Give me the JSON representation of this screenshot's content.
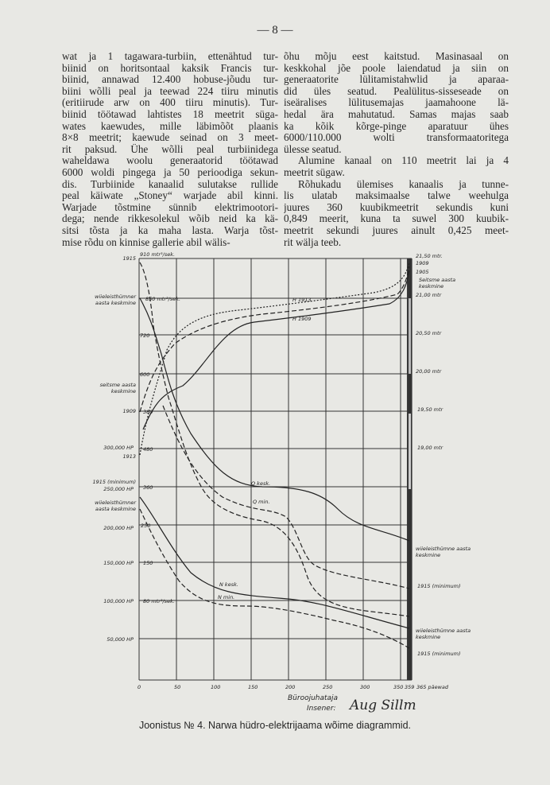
{
  "page_number": "— 8 —",
  "left_column": [
    "wat ja 1 tagawara-turbiin, ettenähtud tur-",
    "biinid on horitsontaal kaksik Francis tur-",
    "biinid, annawad 12.400 hobuse-jõudu tur-",
    "biini wõlli peal ja teewad 224 tiiru minutis",
    "(eritiirude arw on 400 tiiru minutis). Tur-",
    "biinid töötawad lahtistes 18 meetrit süga-",
    "wates kaewudes, mille läbimõõt plaanis",
    "8×8 meetrit; kaewude seinad on 3 meet-",
    "rit paksud. Ühe wõlli peal turbiinidega",
    "waheldawa woolu generaatorid töötawad",
    "6000 woldi pingega ja 50 perioodiga sekun-",
    "dis. Turbiinide kanaalid sulutakse rullide",
    "peal käiwate „Stoney“ warjade abil kinni.",
    "Warjade tõstmine sünnib elektrimootori-",
    "dega; nende rikkesolekul wõib neid ka kä-",
    "sitsi tõsta ja ka maha lasta. Warja tõst-",
    "mise rõdu on kinnise gallerie abil wälis-"
  ],
  "right_column": [
    "õhu mõju eest kaitstud. Masinasaal on",
    "keskkohal jõe poole laiendatud ja siin on",
    "generaatorite lülitamistahwlid ja aparaa-",
    "did üles seatud. Pealülitus-sisseseade on",
    "iseäralises lülitusemajas jaamahoone lä-",
    "hedal ära mahutatud. Samas majas saab",
    "ka kõik kõrge-pinge aparatuur ühes",
    "6000/110.000 wolti transformaatoritega",
    "ülesse seatud.",
    "Alumine kanaal on 110 meetrit lai ja 4",
    "meetrit sügaw.",
    "Rõhukadu ülemises kanaalis ja tunne-",
    "lis ulatab maksimaalse talwe weehulga",
    "juures 360 kuubikmeetrit sekundis kuni",
    "0,849 meerit, kuna ta suwel 300 kuubik-",
    "meetrit sekundi juures ainult 0,425 meet-",
    "rit wälja teeb."
  ],
  "diagram": {
    "x_ticks": [
      "0",
      "50",
      "100",
      "150",
      "200",
      "250",
      "300",
      "350",
      "359",
      "365 päewad"
    ],
    "left_labels": {
      "y1915": "1915",
      "wiiel_kesk": [
        "wiieleisthümner",
        "aasta keskmine"
      ],
      "seitsme_kesk": [
        "seitsme aasta",
        "keskmine"
      ],
      "y1909": "1909",
      "hp300": "300,000 HP",
      "y1913": "1913",
      "min1915": "1915 (minimum)",
      "hp250": "250,000 HP",
      "wiiel_kesk2": [
        "wiieleisthümner",
        "aasta keskmine"
      ],
      "hp200": "200,000 HP",
      "hp150": "150,000 HP",
      "hp100": "100,000 HP",
      "hp50": "50,000 HP"
    },
    "inner_labels": {
      "q910": "910 mtr³/sek.",
      "q850": "850 mtr³/sek.",
      "q720": "720",
      "q600": "600",
      "q380": "380",
      "q480": "480",
      "q360": "360",
      "q250": "250",
      "q150": "150",
      "q80": "80 mtr³/sek.",
      "h1913": "H 1913",
      "h1909": "H 1909",
      "q_kesk": "Q kesk.",
      "q_min": "Q min.",
      "n_kesk": "N kesk.",
      "n_min": "N min."
    },
    "right_labels": {
      "m2150": "21,50 mtr.",
      "y1909": "1909",
      "y1905": "1905",
      "seitsme": [
        "Seitsme aasta",
        "keskmine"
      ],
      "m2100": "21,00 mtr",
      "m2050": "20,50 mtr",
      "m2000": "20,00 mtr",
      "m1950": "19,50 mtr",
      "m1900": "19,00 mtr",
      "wiiel1": [
        "wiieleisthümne aasta",
        "keskmine"
      ],
      "min1915": "1915 (minimum)",
      "wiiel2": [
        "wiieleisthümne aasta",
        "keskmine"
      ],
      "min1915b": "1915 (minimum)"
    }
  },
  "signature": {
    "title1": "Büroojuhataja",
    "title2": "Insener:",
    "name": "Aug Sillm"
  },
  "caption": "Joonistus № 4. Narwa hüdro-elektrijaama wõime diagrammid."
}
